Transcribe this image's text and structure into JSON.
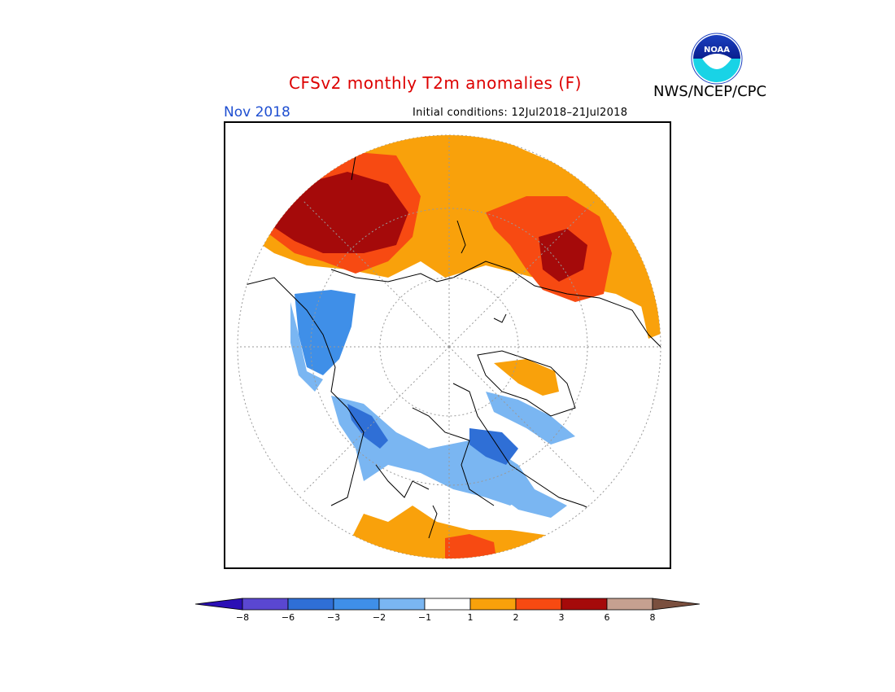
{
  "header": {
    "title": "CFSv2 monthly T2m anomalies (F)",
    "agency": "NWS/NCEP/CPC",
    "logo_text": "NOAA",
    "month": "Nov 2018",
    "initial_conditions": "Initial conditions: 12Jul2018–21Jul2018"
  },
  "colors": {
    "title": "#dd0000",
    "month": "#1f4fd1",
    "bins": [
      "#2b0fb5",
      "#5a47d1",
      "#2f6fd6",
      "#3f8fe8",
      "#7ab6f2",
      "#ffffff",
      "#f9a10b",
      "#f74a12",
      "#a50a0a",
      "#c6a090",
      "#7a4f3e"
    ]
  },
  "legend": {
    "ticks": [
      "−8",
      "−6",
      "−3",
      "−2",
      "−1",
      "1",
      "2",
      "3",
      "6",
      "8"
    ]
  }
}
